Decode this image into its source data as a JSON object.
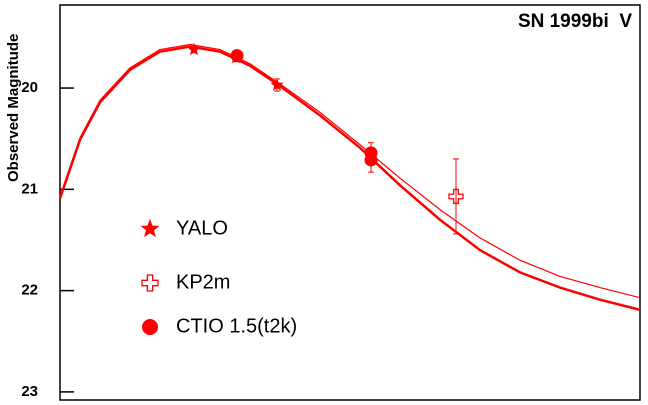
{
  "chart_data": {
    "type": "scatter",
    "title": "SN 1999bi  V",
    "y_label": "Observed Magnitude",
    "xlim": [
      0,
      58
    ],
    "ylim": [
      23.08,
      19.18
    ],
    "yticks": [
      20,
      21,
      22,
      23
    ],
    "legend": "left",
    "color": "#ff0000",
    "lines": [
      {
        "width": 2.5,
        "x": [
          0,
          2,
          4,
          7,
          10,
          13,
          16,
          19,
          22,
          26,
          30,
          34,
          38,
          42,
          46,
          50,
          54,
          58
        ],
        "values": [
          21.09,
          20.51,
          20.14,
          19.82,
          19.64,
          19.59,
          19.64,
          19.78,
          19.98,
          20.27,
          20.59,
          20.96,
          21.3,
          21.6,
          21.82,
          21.97,
          22.09,
          22.19
        ]
      },
      {
        "width": 1.2,
        "x": [
          0,
          2,
          4,
          7,
          10,
          13,
          16,
          19,
          22,
          26,
          30,
          34,
          38,
          42,
          46,
          50,
          54,
          58
        ],
        "values": [
          21.07,
          20.49,
          20.12,
          19.8,
          19.62,
          19.57,
          19.62,
          19.76,
          19.96,
          20.24,
          20.56,
          20.89,
          21.2,
          21.48,
          21.7,
          21.86,
          21.97,
          22.07
        ]
      }
    ],
    "series": [
      {
        "name": "YALO",
        "marker": "star",
        "x": [
          13.4,
          17.6,
          21.7
        ],
        "values": [
          19.62,
          19.7,
          19.97
        ],
        "errors": [
          0.03,
          0.04,
          0.06
        ]
      },
      {
        "name": "KP2m",
        "marker": "cross",
        "x": [
          39.6
        ],
        "values": [
          21.07
        ],
        "errors": [
          0.37
        ]
      },
      {
        "name": "CTIO 1.5(t2k)",
        "marker": "circle",
        "x": [
          17.7,
          31.1,
          31.1
        ],
        "values": [
          19.68,
          20.64,
          20.71
        ],
        "errors": [
          0.03,
          0.1,
          0.12
        ]
      }
    ]
  }
}
